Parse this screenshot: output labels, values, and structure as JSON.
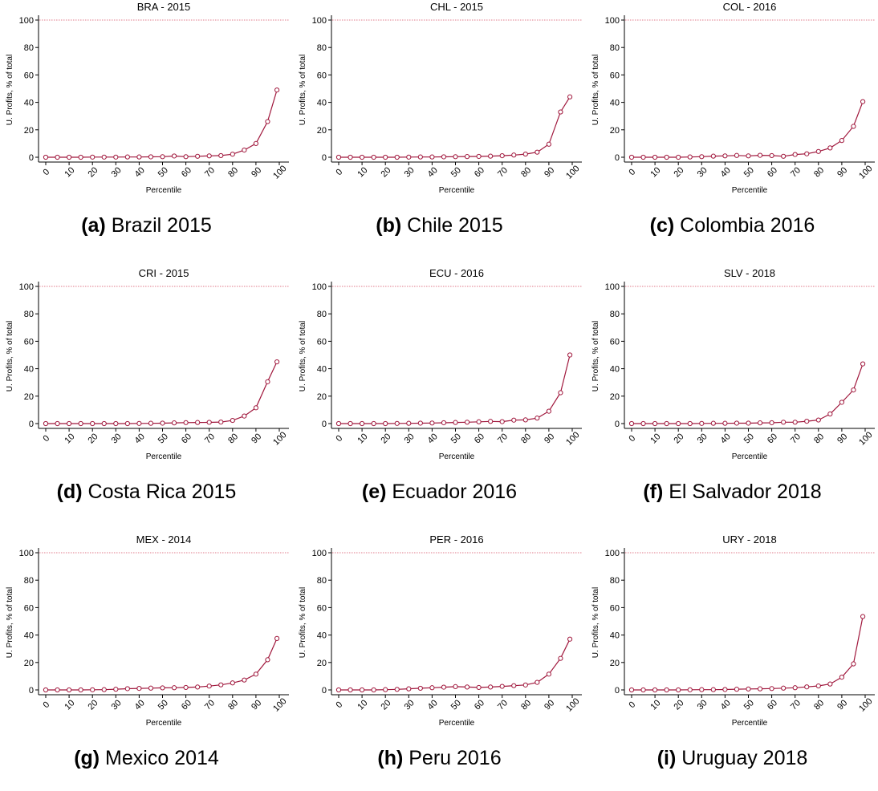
{
  "figure": {
    "x_label": "Percentile",
    "y_label": "U. Profits, % of total",
    "y_ticks": [
      "0",
      "20",
      "40",
      "60",
      "80",
      "100"
    ],
    "x_ticks": [
      "0",
      "10",
      "20",
      "30",
      "40",
      "50",
      "60",
      "70",
      "80",
      "90",
      "100"
    ],
    "line_color": "#a0173c",
    "reference_line_color": "#e07a8a"
  },
  "chart_data": [
    {
      "type": "line",
      "panel_id": "a",
      "title": "BRA - 2015",
      "caption_letter": "(a)",
      "caption_text": "Brazil 2015",
      "xlabel": "Percentile",
      "ylabel": "U. Profits, % of total",
      "xlim": [
        0,
        100
      ],
      "ylim": [
        0,
        100
      ],
      "reference_line": 100,
      "x": [
        0,
        5,
        10,
        15,
        20,
        25,
        30,
        35,
        40,
        45,
        50,
        55,
        60,
        65,
        70,
        75,
        80,
        85,
        90,
        95,
        99
      ],
      "y": [
        0,
        0,
        0,
        0,
        0.1,
        0.1,
        0.1,
        0.2,
        0.2,
        0.3,
        0.4,
        0.9,
        0.4,
        0.7,
        1.0,
        1.2,
        2.2,
        5.2,
        10,
        26,
        49
      ]
    },
    {
      "type": "line",
      "panel_id": "b",
      "title": "CHL - 2015",
      "caption_letter": "(b)",
      "caption_text": "Chile 2015",
      "xlabel": "Percentile",
      "ylabel": "U. Profits, % of total",
      "xlim": [
        0,
        100
      ],
      "ylim": [
        0,
        100
      ],
      "reference_line": 100,
      "x": [
        0,
        5,
        10,
        15,
        20,
        25,
        30,
        35,
        40,
        45,
        50,
        55,
        60,
        65,
        70,
        75,
        80,
        85,
        90,
        95,
        99
      ],
      "y": [
        0,
        0,
        0,
        0,
        0,
        0,
        0.1,
        0.2,
        0.2,
        0.3,
        0.4,
        0.5,
        0.6,
        0.8,
        1.1,
        1.6,
        2.3,
        3.7,
        9.5,
        33,
        44
      ]
    },
    {
      "type": "line",
      "panel_id": "c",
      "title": "COL - 2016",
      "caption_letter": "(c)",
      "caption_text": "Colombia 2016",
      "xlabel": "Percentile",
      "ylabel": "U. Profits, % of total",
      "xlim": [
        0,
        100
      ],
      "ylim": [
        0,
        100
      ],
      "reference_line": 100,
      "x": [
        0,
        5,
        10,
        15,
        20,
        25,
        30,
        35,
        40,
        45,
        50,
        55,
        60,
        65,
        70,
        75,
        80,
        85,
        90,
        95,
        99
      ],
      "y": [
        0,
        0,
        0,
        0,
        0,
        0.2,
        0.4,
        0.8,
        1.0,
        1.3,
        1.0,
        1.4,
        1.2,
        0.7,
        2.0,
        2.5,
        4.2,
        6.8,
        12.2,
        22.5,
        40.5
      ]
    },
    {
      "type": "line",
      "panel_id": "d",
      "title": "CRI - 2015",
      "caption_letter": "(d)",
      "caption_text": "Costa Rica 2015",
      "xlabel": "Percentile",
      "ylabel": "U. Profits, % of total",
      "xlim": [
        0,
        100
      ],
      "ylim": [
        0,
        100
      ],
      "reference_line": 100,
      "x": [
        0,
        5,
        10,
        15,
        20,
        25,
        30,
        35,
        40,
        45,
        50,
        55,
        60,
        65,
        70,
        75,
        80,
        85,
        90,
        95,
        99
      ],
      "y": [
        0,
        0,
        0,
        0,
        0,
        0,
        0,
        0,
        0.1,
        0.2,
        0.3,
        0.5,
        0.7,
        0.8,
        0.9,
        1.1,
        2.3,
        5.5,
        11.5,
        30.5,
        45
      ]
    },
    {
      "type": "line",
      "panel_id": "e",
      "title": "ECU - 2016",
      "caption_letter": "(e)",
      "caption_text": "Ecuador 2016",
      "xlabel": "Percentile",
      "ylabel": "U. Profits, % of total",
      "xlim": [
        0,
        100
      ],
      "ylim": [
        0,
        100
      ],
      "reference_line": 100,
      "x": [
        0,
        5,
        10,
        15,
        20,
        25,
        30,
        35,
        40,
        45,
        50,
        55,
        60,
        65,
        70,
        75,
        80,
        85,
        90,
        95,
        99
      ],
      "y": [
        0,
        0,
        0,
        0,
        0,
        0.1,
        0.2,
        0.3,
        0.4,
        0.6,
        0.8,
        1.0,
        1.3,
        1.6,
        1.4,
        2.5,
        2.7,
        4.0,
        9.0,
        22.5,
        50
      ]
    },
    {
      "type": "line",
      "panel_id": "f",
      "title": "SLV - 2018",
      "caption_letter": "(f)",
      "caption_text": "El Salvador 2018",
      "xlabel": "Percentile",
      "ylabel": "U. Profits, % of total",
      "xlim": [
        0,
        100
      ],
      "ylim": [
        0,
        100
      ],
      "reference_line": 100,
      "x": [
        0,
        5,
        10,
        15,
        20,
        25,
        30,
        35,
        40,
        45,
        50,
        55,
        60,
        65,
        70,
        75,
        80,
        85,
        90,
        95,
        99
      ],
      "y": [
        0,
        0,
        0,
        0,
        0,
        0,
        0.1,
        0.2,
        0.2,
        0.3,
        0.3,
        0.5,
        0.6,
        1.0,
        1.0,
        1.7,
        2.6,
        7.0,
        15.5,
        24.5,
        43.5
      ]
    },
    {
      "type": "line",
      "panel_id": "g",
      "title": "MEX - 2014",
      "caption_letter": "(g)",
      "caption_text": "Mexico 2014",
      "xlabel": "Percentile",
      "ylabel": "U. Profits, % of total",
      "xlim": [
        0,
        100
      ],
      "ylim": [
        0,
        100
      ],
      "reference_line": 100,
      "x": [
        0,
        5,
        10,
        15,
        20,
        25,
        30,
        35,
        40,
        45,
        50,
        55,
        60,
        65,
        70,
        75,
        80,
        85,
        90,
        95,
        99
      ],
      "y": [
        0,
        0,
        0,
        0,
        0.1,
        0.2,
        0.5,
        0.9,
        1.1,
        1.3,
        1.5,
        1.6,
        1.8,
        2.1,
        2.8,
        3.7,
        5.1,
        7.2,
        11.5,
        22,
        37.5
      ]
    },
    {
      "type": "line",
      "panel_id": "h",
      "title": "PER - 2016",
      "caption_letter": "(h)",
      "caption_text": "Peru 2016",
      "xlabel": "Percentile",
      "ylabel": "U. Profits, % of total",
      "xlim": [
        0,
        100
      ],
      "ylim": [
        0,
        100
      ],
      "reference_line": 100,
      "x": [
        0,
        5,
        10,
        15,
        20,
        25,
        30,
        35,
        40,
        45,
        50,
        55,
        60,
        65,
        70,
        75,
        80,
        85,
        90,
        95,
        99
      ],
      "y": [
        0,
        0,
        0,
        0,
        0.2,
        0.4,
        0.8,
        1.2,
        1.6,
        2.0,
        2.4,
        2.1,
        1.8,
        2.1,
        2.6,
        3.1,
        3.6,
        5.5,
        11.5,
        23,
        37
      ]
    },
    {
      "type": "line",
      "panel_id": "i",
      "title": "URY - 2018",
      "caption_letter": "(i)",
      "caption_text": "Uruguay 2018",
      "xlabel": "Percentile",
      "ylabel": "U. Profits, % of total",
      "xlim": [
        0,
        100
      ],
      "ylim": [
        0,
        100
      ],
      "reference_line": 100,
      "x": [
        0,
        5,
        10,
        15,
        20,
        25,
        30,
        35,
        40,
        45,
        50,
        55,
        60,
        65,
        70,
        75,
        80,
        85,
        90,
        95,
        99
      ],
      "y": [
        0,
        0,
        0,
        0,
        0,
        0.1,
        0.2,
        0.2,
        0.3,
        0.5,
        0.7,
        0.8,
        1.0,
        1.3,
        1.6,
        2.2,
        2.9,
        4.3,
        9.3,
        19,
        53.5
      ]
    }
  ]
}
